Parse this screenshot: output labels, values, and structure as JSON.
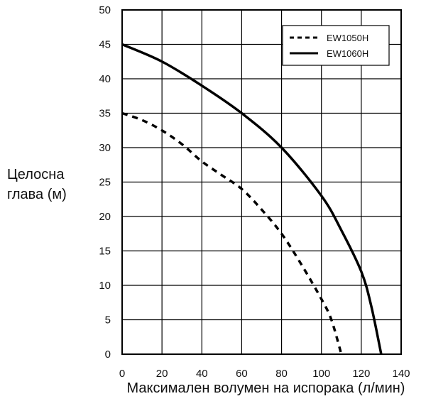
{
  "chart_data": {
    "type": "line",
    "xlabel": "Максимален волумен на испорака (л/мин)",
    "ylabel_lines": [
      "Целосна",
      "глава (м)"
    ],
    "xlim": [
      0,
      140
    ],
    "ylim": [
      0,
      50
    ],
    "x_ticks": [
      "0",
      "20",
      "40",
      "60",
      "80",
      "100",
      "120",
      "140"
    ],
    "y_ticks": [
      "0",
      "5",
      "10",
      "15",
      "20",
      "25",
      "30",
      "35",
      "40",
      "45",
      "50"
    ],
    "grid": true,
    "legend_position": "top-right",
    "series": [
      {
        "name": "EW1050H",
        "style": "dashed",
        "color": "#000000",
        "x": [
          0,
          10,
          20,
          30,
          40,
          50,
          60,
          70,
          80,
          90,
          100,
          105,
          110
        ],
        "y": [
          35,
          34,
          32.5,
          30.5,
          28,
          26,
          24,
          21,
          17.5,
          13,
          8,
          5,
          0
        ]
      },
      {
        "name": "EW1060H",
        "style": "solid",
        "color": "#000000",
        "x": [
          0,
          20,
          40,
          60,
          80,
          100,
          110,
          120,
          125,
          130
        ],
        "y": [
          45,
          42.5,
          39,
          35,
          30,
          23,
          18,
          12,
          7,
          0
        ]
      }
    ]
  }
}
